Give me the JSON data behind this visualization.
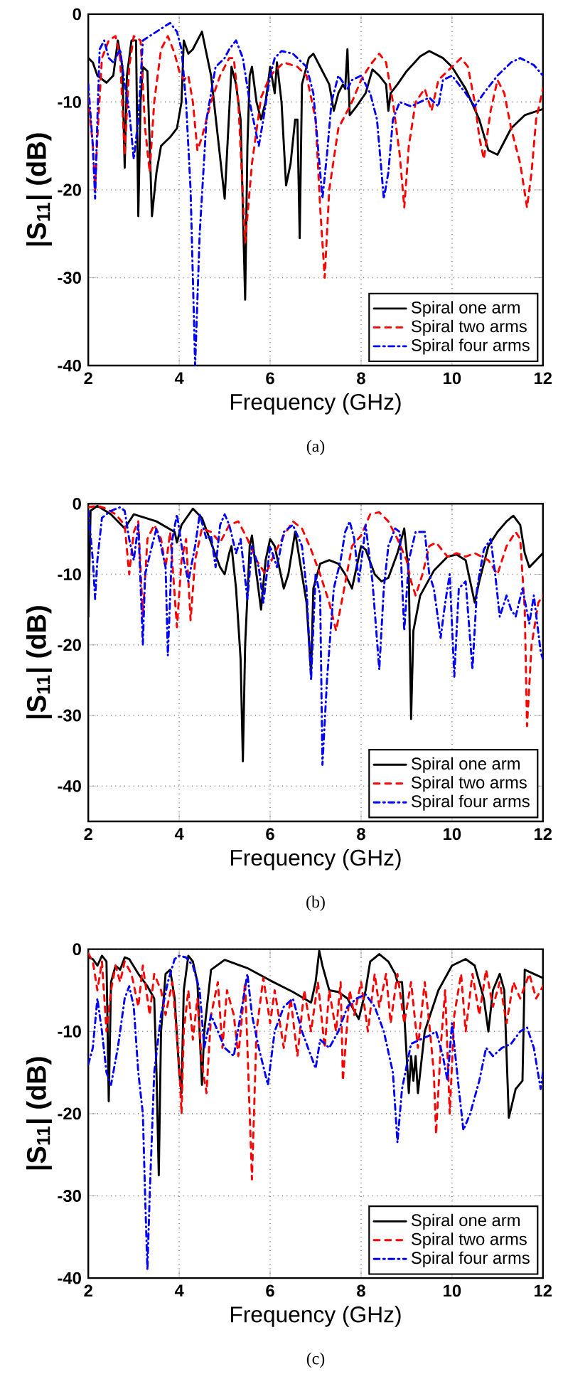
{
  "chart_data": [
    {
      "type": "line",
      "xlabel": "Frequency (GHz)",
      "ylabel": "|S$_{11}$| (dB)",
      "annotations": [
        "(a)"
      ],
      "xlim": [
        2,
        12
      ],
      "ylim": [
        -40,
        0
      ],
      "xticks": [
        2,
        4,
        6,
        8,
        10,
        12
      ],
      "yticks": [
        -40,
        -30,
        -20,
        -10,
        0
      ],
      "grid": true,
      "legend": "bottom right",
      "series": [
        {
          "name": "Spiral one arm",
          "color": "#000000",
          "line_style": "solid",
          "x": [
            2.0,
            2.1,
            2.2,
            2.4,
            2.55,
            2.65,
            2.75,
            2.8,
            2.85,
            2.95,
            3.05,
            3.1,
            3.15,
            3.2,
            3.3,
            3.4,
            3.5,
            3.6,
            3.8,
            3.95,
            4.05,
            4.1,
            4.2,
            4.3,
            4.5,
            4.7,
            4.85,
            5.0,
            5.1,
            5.15,
            5.25,
            5.35,
            5.45,
            5.5,
            5.55,
            5.6,
            5.7,
            5.8,
            5.9,
            6.0,
            6.1,
            6.15,
            6.25,
            6.35,
            6.45,
            6.55,
            6.6,
            6.65,
            6.7,
            6.85,
            6.95,
            7.1,
            7.3,
            7.4,
            7.5,
            7.6,
            7.65,
            7.7,
            7.75,
            7.9,
            8.1,
            8.25,
            8.4,
            8.55,
            8.6,
            8.65,
            8.8,
            9.0,
            9.3,
            9.5,
            9.8,
            10.0,
            10.3,
            10.6,
            10.8,
            11.0,
            11.3,
            11.6,
            12.0
          ],
          "values": [
            -5,
            -5.5,
            -7,
            -7.8,
            -7,
            -3,
            -6,
            -17.5,
            -7,
            -3,
            -3,
            -23,
            -10,
            -6,
            -6.5,
            -23,
            -18,
            -15,
            -14,
            -13,
            -10,
            -3,
            -4.5,
            -4,
            -2,
            -7,
            -14,
            -21,
            -11,
            -6,
            -8,
            -12,
            -32.5,
            -15,
            -7,
            -6,
            -10,
            -12,
            -10,
            -6,
            -9,
            -5.5,
            -10,
            -19.5,
            -17,
            -12,
            -12,
            -25.5,
            -8,
            -5,
            -4.5,
            -6,
            -8,
            -11,
            -9,
            -8,
            -8.5,
            -4,
            -11.5,
            -10.5,
            -9,
            -6.3,
            -7,
            -8,
            -11,
            -9,
            -8,
            -6.5,
            -4.8,
            -4.2,
            -5,
            -6,
            -8.5,
            -12,
            -15.5,
            -16,
            -13,
            -11.5,
            -10.8
          ]
        },
        {
          "name": "Spiral two arms",
          "color": "#ff0000",
          "line_style": "dashed",
          "x": [
            2.0,
            2.1,
            2.15,
            2.2,
            2.3,
            2.45,
            2.6,
            2.7,
            2.8,
            2.9,
            3.0,
            3.15,
            3.25,
            3.35,
            3.45,
            3.6,
            3.75,
            3.9,
            4.0,
            4.1,
            4.2,
            4.3,
            4.4,
            4.5,
            4.7,
            4.9,
            5.1,
            5.2,
            5.3,
            5.45,
            5.6,
            5.8,
            6.0,
            6.3,
            6.6,
            6.8,
            7.0,
            7.1,
            7.2,
            7.3,
            7.5,
            7.8,
            8.0,
            8.2,
            8.4,
            8.55,
            8.7,
            8.85,
            8.95,
            9.05,
            9.2,
            9.4,
            9.55,
            9.7,
            9.9,
            10.1,
            10.2,
            10.35,
            10.5,
            10.6,
            10.7,
            10.85,
            11.0,
            11.15,
            11.3,
            11.5,
            11.65,
            11.75,
            11.85,
            12.0
          ],
          "values": [
            -9.5,
            -15,
            -20,
            -14,
            -5,
            -3,
            -2.5,
            -5,
            -16,
            -6,
            -2.5,
            -3,
            -13,
            -18,
            -10,
            -4,
            -2.5,
            -4.5,
            -6.5,
            -7.5,
            -7,
            -10,
            -15.5,
            -14,
            -10,
            -7,
            -5,
            -5,
            -10,
            -26,
            -17,
            -9.5,
            -7,
            -5.5,
            -6,
            -7,
            -12,
            -22,
            -30,
            -20,
            -13,
            -10,
            -7.5,
            -5.8,
            -4.5,
            -5.5,
            -10,
            -16,
            -22,
            -15,
            -10,
            -8.5,
            -11,
            -7.5,
            -6.5,
            -5.5,
            -5,
            -6,
            -10,
            -14,
            -16.5,
            -11,
            -7.5,
            -9,
            -13,
            -17,
            -22,
            -18,
            -12,
            -8.5
          ]
        },
        {
          "name": "Spiral four arms",
          "color": "#0000ff",
          "line_style": "dashdot",
          "x": [
            2.0,
            2.1,
            2.15,
            2.2,
            2.25,
            2.35,
            2.45,
            2.55,
            2.7,
            2.8,
            2.9,
            3.0,
            3.1,
            3.2,
            3.35,
            3.5,
            3.65,
            3.8,
            3.95,
            4.05,
            4.15,
            4.25,
            4.35,
            4.45,
            4.6,
            4.8,
            5.0,
            5.1,
            5.25,
            5.4,
            5.55,
            5.75,
            5.85,
            6.0,
            6.1,
            6.25,
            6.5,
            6.8,
            6.95,
            7.05,
            7.15,
            7.25,
            7.35,
            7.5,
            7.7,
            7.8,
            8.0,
            8.2,
            8.35,
            8.5,
            8.6,
            8.7,
            8.85,
            9.1,
            9.3,
            9.5,
            9.7,
            9.8,
            10.0,
            10.3,
            10.5,
            10.7,
            11.0,
            11.3,
            11.5,
            11.8,
            12.0
          ],
          "values": [
            -8,
            -15,
            -21,
            -12,
            -4,
            -3,
            -5,
            -5.5,
            -4,
            -8,
            -11,
            -16.5,
            -12,
            -3,
            -2.5,
            -2,
            -1.5,
            -1,
            -2,
            -4,
            -10,
            -20,
            -40,
            -25,
            -12,
            -6,
            -5,
            -4,
            -3,
            -5,
            -10,
            -15,
            -12,
            -7,
            -5,
            -4.2,
            -4.5,
            -6,
            -9,
            -15,
            -21,
            -16,
            -10,
            -7,
            -8.5,
            -7.5,
            -7,
            -9,
            -12,
            -21,
            -18,
            -12,
            -10,
            -10.5,
            -10,
            -9.5,
            -10.5,
            -7.5,
            -7,
            -9,
            -10.5,
            -9,
            -7,
            -5.5,
            -5,
            -5.8,
            -7
          ]
        }
      ]
    },
    {
      "type": "line",
      "xlabel": "Frequency (GHz)",
      "ylabel": "|S$_{11}$| (dB)",
      "annotations": [
        "(b)"
      ],
      "xlim": [
        2,
        12
      ],
      "ylim": [
        -45,
        0
      ],
      "xticks": [
        2,
        4,
        6,
        8,
        10,
        12
      ],
      "yticks": [
        -40,
        -30,
        -20,
        -10,
        0
      ],
      "grid": true,
      "legend": "bottom right",
      "series": [
        {
          "name": "Spiral one arm",
          "color": "#000000",
          "line_style": "solid",
          "x": [
            2.0,
            2.05,
            2.2,
            2.5,
            2.8,
            3.0,
            3.5,
            3.9,
            3.95,
            4.05,
            4.3,
            4.5,
            4.7,
            4.9,
            5.0,
            5.1,
            5.15,
            5.25,
            5.35,
            5.4,
            5.45,
            5.55,
            5.6,
            5.7,
            5.8,
            5.9,
            6.0,
            6.1,
            6.3,
            6.4,
            6.55,
            6.65,
            6.8,
            6.9,
            6.95,
            7.1,
            7.3,
            7.5,
            7.65,
            7.8,
            7.9,
            8.0,
            8.1,
            8.3,
            8.45,
            8.6,
            8.8,
            8.95,
            9.05,
            9.1,
            9.15,
            9.3,
            9.6,
            9.9,
            10.1,
            10.3,
            10.4,
            10.5,
            10.6,
            10.8,
            11.0,
            11.2,
            11.35,
            11.5,
            11.6,
            11.7,
            11.85,
            12.0
          ],
          "values": [
            -16,
            -1,
            -0.3,
            -1.5,
            -3.5,
            -1.5,
            -2.5,
            -4,
            -5.5,
            -3,
            -0.7,
            -2,
            -5.5,
            -9,
            -10,
            -7,
            -6,
            -12,
            -22,
            -36.5,
            -20,
            -6,
            -4.5,
            -10,
            -15,
            -8,
            -5,
            -6,
            -12,
            -10,
            -4,
            -8,
            -14,
            -24,
            -12,
            -8.5,
            -8,
            -8.5,
            -10,
            -12,
            -9,
            -6,
            -6.5,
            -10,
            -11,
            -10.5,
            -7,
            -3.5,
            -10,
            -30.5,
            -18,
            -13,
            -9.5,
            -7.5,
            -7.2,
            -8,
            -11,
            -14,
            -11,
            -6,
            -4,
            -2.5,
            -1.7,
            -3,
            -7,
            -9,
            -8,
            -7
          ]
        },
        {
          "name": "Spiral two arms",
          "color": "#ff0000",
          "line_style": "dashed",
          "x": [
            2.0,
            2.2,
            2.4,
            2.6,
            2.8,
            2.9,
            3.0,
            3.1,
            3.2,
            3.3,
            3.45,
            3.6,
            3.7,
            3.8,
            3.95,
            4.05,
            4.15,
            4.25,
            4.35,
            4.5,
            4.7,
            4.9,
            5.1,
            5.3,
            5.5,
            5.7,
            5.9,
            6.1,
            6.3,
            6.5,
            6.7,
            6.9,
            7.1,
            7.3,
            7.45,
            7.6,
            7.8,
            8.0,
            8.2,
            8.4,
            8.6,
            8.8,
            9.0,
            9.1,
            9.2,
            9.35,
            9.5,
            9.65,
            9.9,
            10.1,
            10.3,
            10.5,
            10.8,
            11.0,
            11.2,
            11.4,
            11.5,
            11.6,
            11.65,
            11.75,
            11.9,
            12.0
          ],
          "values": [
            -0.5,
            -0.3,
            -0.7,
            -1.5,
            -3,
            -10,
            -4,
            -2.5,
            -16,
            -5,
            -3,
            -5,
            -9,
            -4,
            -17.5,
            -8,
            -5,
            -16.5,
            -8,
            -3.5,
            -4,
            -5.5,
            -3,
            -2.5,
            -5,
            -8,
            -10,
            -7,
            -4.5,
            -2.5,
            -3.5,
            -6.5,
            -10,
            -14,
            -18,
            -13,
            -6,
            -4.5,
            -1.5,
            -1.2,
            -2.5,
            -5,
            -8,
            -11,
            -13,
            -10,
            -6,
            -5.5,
            -7.5,
            -7,
            -7.5,
            -7,
            -8,
            -10,
            -6,
            -4,
            -5,
            -15,
            -31.5,
            -20,
            -14,
            -13
          ]
        },
        {
          "name": "Spiral four arms",
          "color": "#0000ff",
          "line_style": "dashdot",
          "x": [
            2.0,
            2.1,
            2.15,
            2.2,
            2.3,
            2.5,
            2.7,
            2.8,
            2.9,
            3.0,
            3.1,
            3.2,
            3.25,
            3.4,
            3.5,
            3.6,
            3.7,
            3.75,
            3.85,
            3.95,
            4.1,
            4.2,
            4.35,
            4.45,
            4.6,
            4.7,
            4.8,
            4.9,
            5.0,
            5.1,
            5.25,
            5.35,
            5.5,
            5.6,
            5.75,
            5.85,
            6.0,
            6.15,
            6.3,
            6.5,
            6.7,
            6.8,
            6.9,
            7.0,
            7.1,
            7.15,
            7.25,
            7.4,
            7.55,
            7.65,
            7.75,
            7.85,
            7.95,
            8.05,
            8.1,
            8.25,
            8.4,
            8.5,
            8.6,
            8.75,
            8.85,
            8.95,
            9.05,
            9.2,
            9.4,
            9.5,
            9.6,
            9.75,
            9.85,
            9.95,
            10.05,
            10.15,
            10.3,
            10.45,
            10.55,
            10.7,
            10.85,
            10.95,
            11.05,
            11.2,
            11.3,
            11.4,
            11.55,
            11.7,
            11.8,
            11.95,
            12.0
          ],
          "values": [
            -1,
            -8,
            -13.5,
            -8,
            -2,
            -1,
            -0.5,
            -1,
            -5,
            -8,
            -3,
            -20,
            -10,
            -6,
            -3.5,
            -6,
            -9,
            -21.5,
            -5,
            -1.5,
            -8,
            -11,
            -6,
            -1.5,
            -5,
            -4.5,
            -9,
            -3,
            -1.5,
            -3,
            -7,
            -5,
            -13.5,
            -6,
            -9,
            -14,
            -6,
            -9,
            -4,
            -3,
            -6,
            -12,
            -25,
            -10,
            -13,
            -37,
            -25,
            -12,
            -8,
            -4,
            -2.5,
            -5,
            -11,
            -6,
            -3,
            -11,
            -23.5,
            -12,
            -6,
            -3.5,
            -4,
            -18,
            -8,
            -4,
            -4,
            -10,
            -12,
            -19,
            -14,
            -10,
            -24.5,
            -12,
            -11,
            -23.5,
            -12,
            -6.5,
            -5,
            -10,
            -16,
            -13,
            -15,
            -16,
            -12,
            -17,
            -13,
            -21,
            -22
          ]
        }
      ]
    },
    {
      "type": "line",
      "xlabel": "Frequency (GHz)",
      "ylabel": "|S$_{11}$| (dB)",
      "annotations": [
        "(c)"
      ],
      "xlim": [
        2,
        12
      ],
      "ylim": [
        -40,
        0
      ],
      "xticks": [
        2,
        4,
        6,
        8,
        10,
        12
      ],
      "yticks": [
        -40,
        -30,
        -20,
        -10,
        0
      ],
      "grid": true,
      "legend": "bottom right",
      "series": [
        {
          "name": "Spiral one arm",
          "color": "#000000",
          "line_style": "solid",
          "x": [
            2.0,
            2.1,
            2.2,
            2.3,
            2.4,
            2.45,
            2.5,
            2.6,
            2.7,
            2.8,
            2.9,
            3.1,
            3.3,
            3.45,
            3.5,
            3.55,
            3.6,
            3.7,
            3.8,
            3.9,
            4.0,
            4.05,
            4.1,
            4.2,
            4.3,
            4.4,
            4.5,
            4.55,
            4.7,
            5.0,
            5.5,
            6.0,
            6.5,
            6.9,
            7.0,
            7.08,
            7.15,
            7.3,
            7.5,
            7.7,
            7.85,
            7.95,
            8.1,
            8.2,
            8.4,
            8.6,
            8.75,
            8.8,
            8.9,
            8.95,
            9.05,
            9.1,
            9.15,
            9.2,
            9.25,
            9.4,
            9.7,
            10.0,
            10.3,
            10.5,
            10.7,
            10.8,
            10.9,
            11.05,
            11.15,
            11.25,
            11.4,
            11.55,
            11.6,
            11.8,
            12.0
          ],
          "values": [
            -1,
            -1.2,
            -2,
            -0.8,
            -1.5,
            -18.5,
            -4,
            -2,
            -2.5,
            -1,
            -1.2,
            -3,
            -4.5,
            -6,
            -15,
            -27.5,
            -10,
            -3,
            -2.5,
            -6,
            -15,
            -17.5,
            -5,
            -0.8,
            -1.5,
            -4,
            -16.5,
            -10,
            -2.5,
            -1.3,
            -2.3,
            -3.8,
            -5.2,
            -6.5,
            -4,
            -0.2,
            -2,
            -5,
            -5.2,
            -6,
            -7.5,
            -8.5,
            -5,
            -1.5,
            -0.6,
            -1.5,
            -3,
            -4,
            -4,
            -8,
            -17.5,
            -13,
            -16,
            -13,
            -17.5,
            -10,
            -5,
            -2,
            -1.2,
            -2,
            -6,
            -10,
            -5,
            -3,
            -5,
            -20.5,
            -17,
            -16,
            -2.5,
            -3,
            -3.5
          ]
        },
        {
          "name": "Spiral two arms",
          "color": "#ff0000",
          "line_style": "dashed",
          "x": [
            2.0,
            2.1,
            2.2,
            2.3,
            2.4,
            2.5,
            2.6,
            2.7,
            2.8,
            2.95,
            3.1,
            3.2,
            3.35,
            3.45,
            3.6,
            3.7,
            3.85,
            4.0,
            4.05,
            4.1,
            4.2,
            4.3,
            4.4,
            4.5,
            4.6,
            4.7,
            4.85,
            4.95,
            5.05,
            5.2,
            5.3,
            5.45,
            5.6,
            5.7,
            5.85,
            6.0,
            6.1,
            6.3,
            6.45,
            6.6,
            6.75,
            6.9,
            7.05,
            7.2,
            7.3,
            7.45,
            7.55,
            7.6,
            7.75,
            7.85,
            8.0,
            8.15,
            8.3,
            8.4,
            8.55,
            8.65,
            8.8,
            8.95,
            9.1,
            9.25,
            9.4,
            9.5,
            9.6,
            9.65,
            9.75,
            9.85,
            9.95,
            10.05,
            10.2,
            10.3,
            10.45,
            10.6,
            10.75,
            10.9,
            11.05,
            11.2,
            11.35,
            11.5,
            11.7,
            11.85,
            12.0
          ],
          "values": [
            -0.5,
            -1.5,
            -5,
            -1.5,
            -10,
            -5,
            -2,
            -4,
            -1.5,
            -3,
            -7,
            -2,
            -8,
            -3,
            -5,
            -8,
            -4,
            -14,
            -20,
            -10,
            -5,
            -11,
            -6,
            -14,
            -17.5,
            -8,
            -4,
            -12,
            -5,
            -8,
            -13,
            -4,
            -28,
            -10,
            -3.5,
            -9,
            -5,
            -12,
            -6,
            -13,
            -5,
            -10,
            -4,
            -12,
            -5,
            -10,
            -4,
            -16,
            -5,
            -8,
            -4,
            -10,
            -3,
            -7,
            -3,
            -9,
            -3,
            -9,
            -4,
            -12,
            -4,
            -9,
            -15,
            -22.5,
            -12,
            -5,
            -20,
            -8,
            -3,
            -10,
            -3,
            -8,
            -2.5,
            -7,
            -4,
            -9,
            -4,
            -6,
            -3,
            -6,
            -4.5
          ]
        },
        {
          "name": "Spiral four arms",
          "color": "#0000ff",
          "line_style": "dashdot",
          "x": [
            2.0,
            2.1,
            2.2,
            2.3,
            2.4,
            2.5,
            2.65,
            2.8,
            2.9,
            3.0,
            3.1,
            3.2,
            3.25,
            3.3,
            3.35,
            3.45,
            3.6,
            3.75,
            3.9,
            4.0,
            4.15,
            4.3,
            4.45,
            4.55,
            4.7,
            4.85,
            5.0,
            5.2,
            5.35,
            5.5,
            5.6,
            5.75,
            5.95,
            6.1,
            6.3,
            6.5,
            6.7,
            6.9,
            7.0,
            7.1,
            7.3,
            7.5,
            7.7,
            7.9,
            8.1,
            8.3,
            8.5,
            8.7,
            8.8,
            8.9,
            9.1,
            9.3,
            9.5,
            9.65,
            9.8,
            9.9,
            10.0,
            10.15,
            10.25,
            10.4,
            10.6,
            10.75,
            10.9,
            11.1,
            11.3,
            11.5,
            11.65,
            11.8,
            11.95,
            12.0
          ],
          "values": [
            -14,
            -12,
            -6,
            -10,
            -15,
            -16.5,
            -12,
            -6,
            -4.5,
            -7,
            -15,
            -20,
            -30,
            -39,
            -30,
            -15,
            -8,
            -4,
            -1.2,
            -0.8,
            -1,
            -2,
            -5,
            -12,
            -8,
            -10,
            -12,
            -13,
            -8,
            -3,
            -8,
            -12,
            -16.5,
            -10,
            -7,
            -6,
            -10,
            -13,
            -14.5,
            -11,
            -12,
            -10,
            -7,
            -6,
            -5.5,
            -7,
            -10,
            -15,
            -23.5,
            -17,
            -11.5,
            -11,
            -10.5,
            -10,
            -13,
            -16,
            -9,
            -17,
            -22,
            -20,
            -16,
            -12,
            -13,
            -12,
            -11.5,
            -10,
            -9.5,
            -12,
            -17,
            -15
          ]
        }
      ]
    }
  ]
}
